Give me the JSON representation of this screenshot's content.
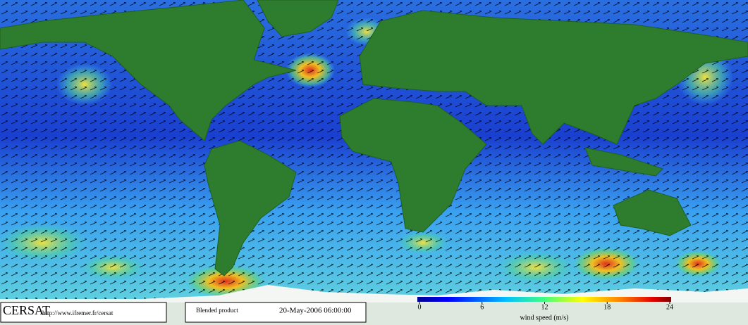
{
  "footer": {
    "logo": "CERSAT",
    "url": "http://www.ifremer.fr/cersat",
    "product": "Blended product",
    "date": "20-May-2006 06:00:00"
  },
  "colorbar": {
    "label": "wind speed (m/s)",
    "lim": [
      0,
      24
    ],
    "ticks": [
      0,
      6,
      12,
      18,
      24
    ]
  }
}
